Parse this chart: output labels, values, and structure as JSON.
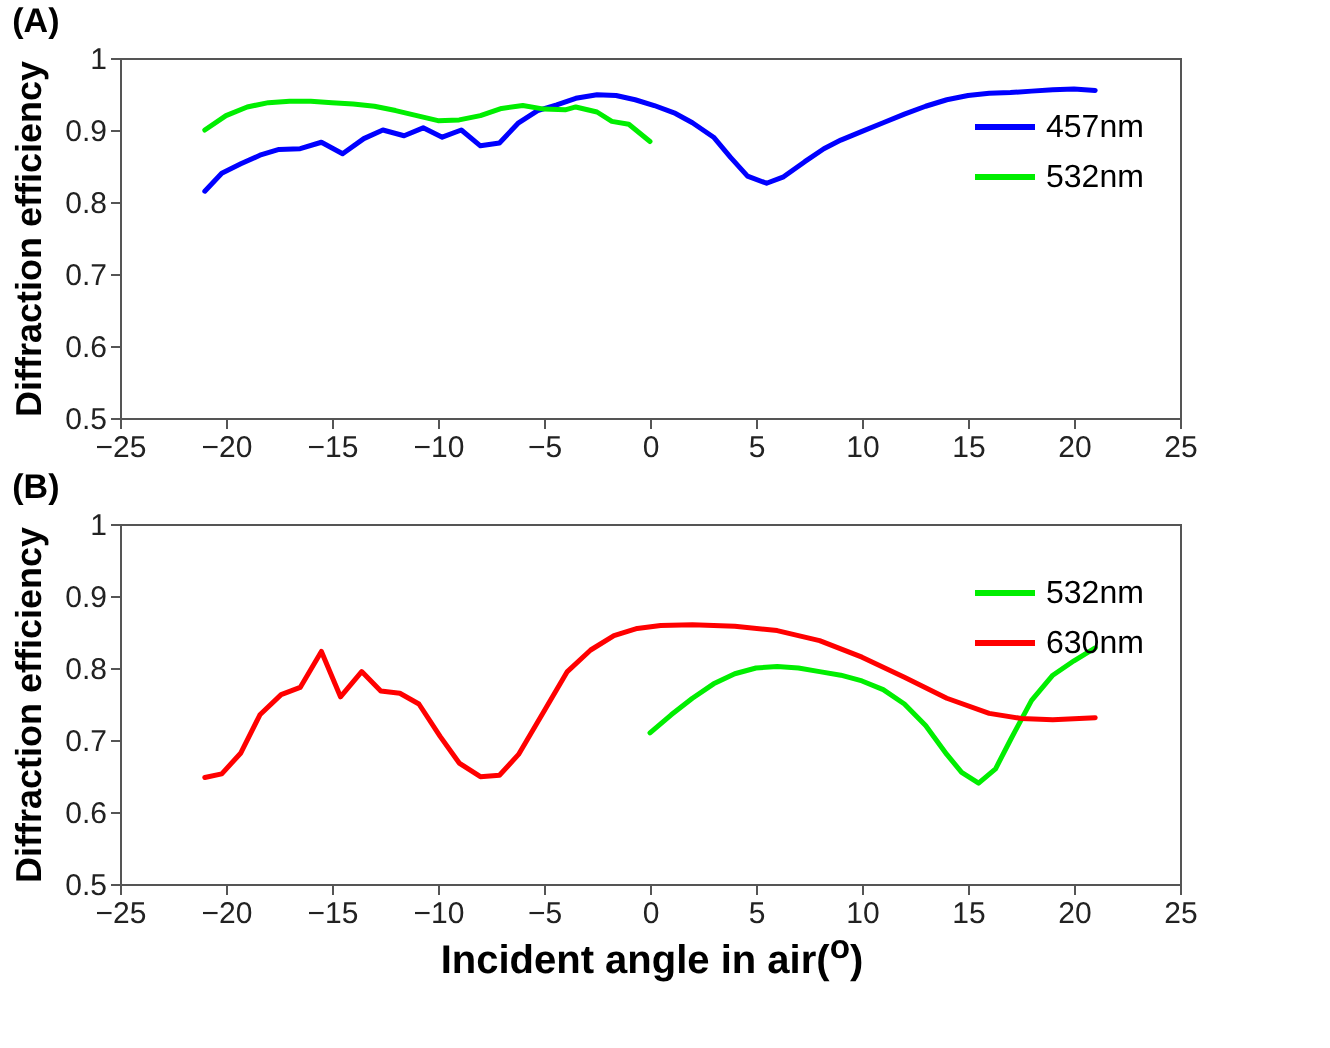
{
  "chart_data": [
    {
      "type": "line",
      "title": "(A)",
      "ylabel": "Diffraction efficiency",
      "xlim": [
        -25,
        25
      ],
      "ylim": [
        0.5,
        1
      ],
      "xticks": [
        -25,
        -20,
        -15,
        -10,
        -5,
        0,
        5,
        10,
        15,
        20,
        25
      ],
      "yticks": [
        0.5,
        0.6,
        0.7,
        0.8,
        0.9,
        1
      ],
      "grid": false,
      "legend": "top right",
      "series": [
        {
          "name": "457nm",
          "color": "#0000ff",
          "x": [
            -21,
            -20.2,
            -19.3,
            -18.4,
            -17.5,
            -16.5,
            -15.5,
            -14.5,
            -13.5,
            -12.6,
            -11.6,
            -10.7,
            -9.8,
            -8.9,
            -8,
            -7.1,
            -6.2,
            -5.3,
            -4.4,
            -3.5,
            -2.5,
            -1.6,
            -0.7,
            0.2,
            1.2,
            2,
            3,
            3.8,
            4.6,
            5.5,
            6.3,
            7.3,
            8.2,
            9,
            10,
            11,
            12,
            13,
            14,
            15,
            16,
            17,
            18,
            19,
            20,
            21
          ],
          "values": [
            0.815,
            0.84,
            0.853,
            0.865,
            0.873,
            0.874,
            0.883,
            0.867,
            0.888,
            0.9,
            0.892,
            0.903,
            0.89,
            0.9,
            0.878,
            0.882,
            0.91,
            0.927,
            0.935,
            0.944,
            0.949,
            0.948,
            0.942,
            0.934,
            0.923,
            0.91,
            0.89,
            0.862,
            0.836,
            0.826,
            0.835,
            0.856,
            0.874,
            0.886,
            0.898,
            0.91,
            0.922,
            0.933,
            0.942,
            0.948,
            0.951,
            0.952,
            0.954,
            0.956,
            0.957,
            0.955
          ]
        },
        {
          "name": "532nm",
          "color": "#00ee00",
          "x": [
            -21,
            -20,
            -19,
            -18,
            -17,
            -16,
            -15,
            -14,
            -13,
            -12,
            -11,
            -10,
            -9,
            -8,
            -7,
            -6,
            -5,
            -4,
            -3.5,
            -2.5,
            -1.8,
            -1,
            0
          ],
          "values": [
            0.9,
            0.92,
            0.932,
            0.938,
            0.94,
            0.94,
            0.938,
            0.936,
            0.933,
            0.927,
            0.92,
            0.913,
            0.914,
            0.92,
            0.93,
            0.934,
            0.929,
            0.928,
            0.932,
            0.925,
            0.912,
            0.908,
            0.884
          ]
        }
      ]
    },
    {
      "type": "line",
      "title": "(B)",
      "xlabel": "Incident angle in air($^{o}$)",
      "ylabel": "Diffraction efficiency",
      "xlim": [
        -25,
        25
      ],
      "ylim": [
        0.5,
        1
      ],
      "xticks": [
        -25,
        -20,
        -15,
        -10,
        -5,
        0,
        5,
        10,
        15,
        20,
        25
      ],
      "yticks": [
        0.5,
        0.6,
        0.7,
        0.8,
        0.9,
        1
      ],
      "grid": false,
      "legend": "top right",
      "series": [
        {
          "name": "532nm",
          "color": "#00ee00",
          "x": [
            0,
            1,
            2,
            3,
            4,
            5,
            6,
            7,
            8,
            9,
            10,
            11,
            12,
            13,
            14,
            14.7,
            15.5,
            16.3,
            17,
            18,
            19,
            20,
            21
          ],
          "values": [
            0.71,
            0.735,
            0.758,
            0.778,
            0.792,
            0.8,
            0.802,
            0.8,
            0.795,
            0.79,
            0.782,
            0.77,
            0.75,
            0.72,
            0.68,
            0.655,
            0.64,
            0.66,
            0.7,
            0.755,
            0.79,
            0.81,
            0.828
          ]
        },
        {
          "name": "630nm",
          "color": "#ff0000",
          "x": [
            -21,
            -20.2,
            -19.3,
            -18.4,
            -17.4,
            -16.5,
            -15.5,
            -14.6,
            -13.6,
            -12.7,
            -11.8,
            -10.9,
            -9.9,
            -9,
            -8,
            -7.1,
            -6.2,
            -5,
            -3.9,
            -2.8,
            -1.7,
            -0.6,
            0.5,
            2,
            4,
            6,
            8,
            10,
            12,
            14,
            16,
            17.5,
            19,
            21
          ],
          "values": [
            0.648,
            0.653,
            0.682,
            0.735,
            0.763,
            0.773,
            0.823,
            0.76,
            0.795,
            0.768,
            0.765,
            0.75,
            0.705,
            0.668,
            0.649,
            0.651,
            0.68,
            0.74,
            0.795,
            0.825,
            0.845,
            0.855,
            0.859,
            0.86,
            0.858,
            0.852,
            0.838,
            0.815,
            0.787,
            0.758,
            0.737,
            0.73,
            0.728,
            0.731
          ]
        }
      ]
    }
  ]
}
